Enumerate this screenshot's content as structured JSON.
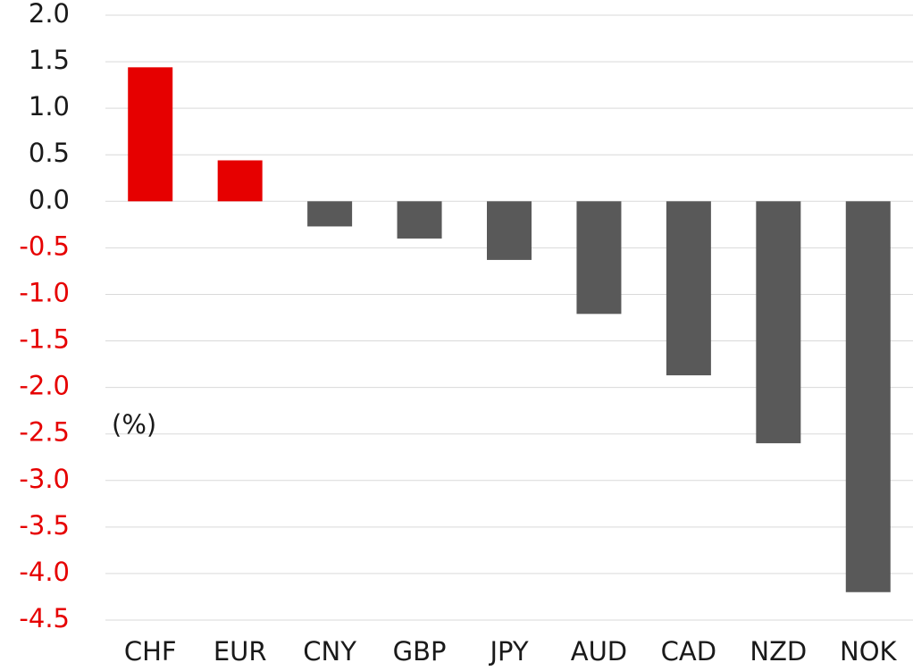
{
  "chart_data": {
    "type": "bar",
    "annotation": "(%)",
    "categories": [
      "CHF",
      "EUR",
      "CNY",
      "GBP",
      "JPY",
      "AUD",
      "CAD",
      "NZD",
      "NOK"
    ],
    "values": [
      1.44,
      0.44,
      -0.27,
      -0.4,
      -0.63,
      -1.21,
      -1.87,
      -2.6,
      -4.2
    ],
    "colors": [
      "#e60000",
      "#e60000",
      "#595959",
      "#595959",
      "#595959",
      "#595959",
      "#595959",
      "#595959",
      "#595959"
    ],
    "ylim": [
      -4.5,
      2
    ],
    "yticks": [
      {
        "value": 2,
        "label": "2.0"
      },
      {
        "value": 1.5,
        "label": "1.5"
      },
      {
        "value": 1,
        "label": "1.0"
      },
      {
        "value": 0.5,
        "label": "0.5"
      },
      {
        "value": 0,
        "label": "0.0"
      },
      {
        "value": -0.5,
        "label": "-0.5"
      },
      {
        "value": -1,
        "label": "-1.0"
      },
      {
        "value": -1.5,
        "label": "-1.5"
      },
      {
        "value": -2,
        "label": "-2.0"
      },
      {
        "value": -2.5,
        "label": "-2.5"
      },
      {
        "value": -3,
        "label": "-3.0"
      },
      {
        "value": -3.5,
        "label": "-3.5"
      },
      {
        "value": -4,
        "label": "-4.0"
      },
      {
        "value": -4.5,
        "label": "-4.5"
      }
    ],
    "ytick_color": "#1a1a1a",
    "ytick_negative_color": "#e60000",
    "grid": true
  }
}
